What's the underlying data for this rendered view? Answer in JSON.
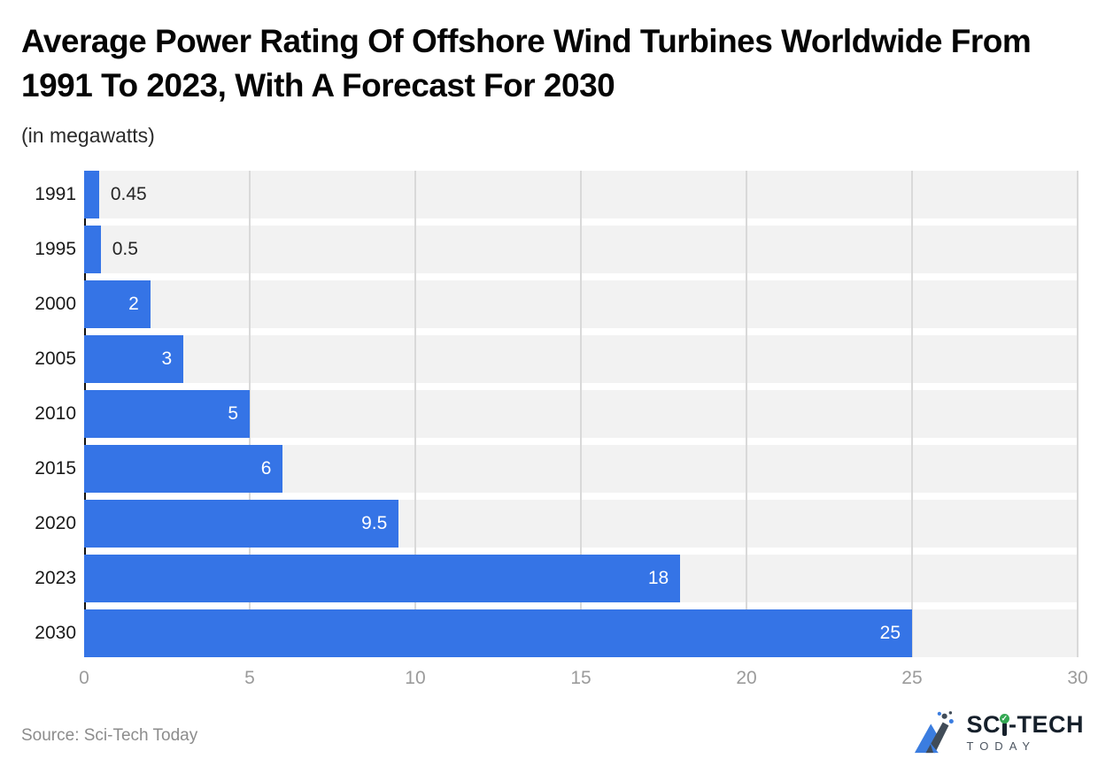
{
  "page": {
    "title": "Average Power Rating Of Offshore Wind Turbines Worldwide From 1991 To 2023, With A Forecast For 2030",
    "subtitle": "(in megawatts)"
  },
  "chart_data": {
    "type": "bar",
    "orientation": "horizontal",
    "title": "Average Power Rating Of Offshore Wind Turbines Worldwide From 1991 To 2023, With A Forecast For 2030",
    "subtitle_unit": "(in megawatts)",
    "categories": [
      "1991",
      "1995",
      "2000",
      "2005",
      "2010",
      "2015",
      "2020",
      "2023",
      "2030"
    ],
    "values": [
      0.45,
      0.5,
      2,
      3,
      5,
      6,
      9.5,
      18,
      25
    ],
    "value_labels": [
      "0.45",
      "0.5",
      "2",
      "3",
      "5",
      "6",
      "9.5",
      "18",
      "25"
    ],
    "xlim": [
      0,
      30
    ],
    "x_ticks": [
      0,
      5,
      10,
      15,
      20,
      25,
      30
    ],
    "grid": true,
    "legend": false,
    "inside_label_min": 2,
    "bar_color": "#3574e6",
    "row_bg_color": "#f2f2f2",
    "gridline_color": "#d9d9d9",
    "axis_line_color": "#111111",
    "tick_label_color": "#9b9b9b",
    "category_label_color": "#1a1a1a",
    "label_inside_color": "#ffffff",
    "label_outside_color": "#262626"
  },
  "footer": {
    "source": "Source: Sci-Tech Today",
    "logo": {
      "prefix": "SC",
      "suffix": "-TECH",
      "check": "✓",
      "subtext": "TODAY"
    }
  }
}
